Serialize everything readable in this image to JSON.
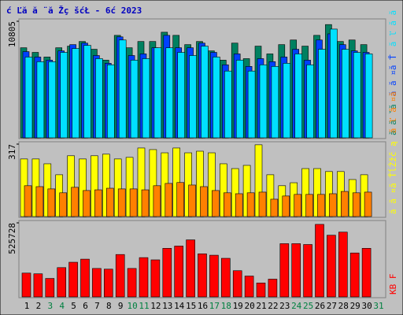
{
  "chart_data": {
    "type": "bar",
    "title": "ć Ľă   ă ¨ă Žç šćŁ   - 6ć    2023",
    "title_color": "#0000c0",
    "categories": [
      "1",
      "2",
      "3",
      "4",
      "5",
      "6",
      "7",
      "8",
      "9",
      "10",
      "11",
      "12",
      "13",
      "14",
      "15",
      "16",
      "17",
      "18",
      "19",
      "20",
      "21",
      "22",
      "23",
      "24",
      "25",
      "26",
      "27",
      "28",
      "29",
      "30",
      "31"
    ],
    "x_label_colors": [
      "#000000",
      "#000000",
      "#008040",
      "#008040",
      "#000000",
      "#000000",
      "#000000",
      "#000000",
      "#000000",
      "#008040",
      "#008040",
      "#000000",
      "#000000",
      "#000000",
      "#000000",
      "#000000",
      "#008040",
      "#008040",
      "#000000",
      "#000000",
      "#000000",
      "#000000",
      "#000000",
      "#008040",
      "#008040",
      "#000000",
      "#000000",
      "#000000",
      "#000000",
      "#000000",
      "#008040"
    ],
    "panels": [
      {
        "ylim": [
          0,
          10805
        ],
        "yticks": [
          10805
        ],
        "series": [
          {
            "name": "ă ă ˇă ",
            "color": "#008060",
            "values": [
              8350,
              7920,
              7490,
              8350,
              8500,
              8930,
              8210,
              7200,
              9500,
              8350,
              8930,
              8930,
              9790,
              9500,
              8640,
              8930,
              8060,
              7200,
              8780,
              7340,
              8500,
              7780,
              8640,
              9070,
              8500,
              9500,
              10500,
              8930,
              9070,
              8640,
              null
            ]
          },
          {
            "name": "ă ă ¤ă Ť",
            "color": "#0040ff",
            "values": [
              7990,
              7490,
              7200,
              8060,
              8640,
              8780,
              7630,
              6910,
              9360,
              7630,
              7780,
              8350,
              9500,
              8350,
              8350,
              8780,
              7920,
              6770,
              7780,
              6620,
              7340,
              7060,
              7490,
              8210,
              7200,
              9070,
              9640,
              8640,
              8060,
              7920,
              null
            ]
          },
          {
            "name": "ă ľ ă ă ",
            "color": "#00e0ff",
            "values": [
              7490,
              7060,
              7060,
              7920,
              8280,
              8570,
              7340,
              6770,
              9070,
              7200,
              7340,
              8350,
              8350,
              7920,
              7630,
              8500,
              7490,
              6190,
              7200,
              6190,
              6770,
              6620,
              6910,
              7780,
              6770,
              8210,
              10080,
              8210,
              7920,
              7780,
              null
            ]
          }
        ]
      },
      {
        "ylim": [
          0,
          317
        ],
        "yticks": [
          317
        ],
        "series": [
          {
            "name": "ă ă ¤ă ŤĺŻžč ą",
            "color": "#ffff00",
            "values": [
              252,
              252,
              231,
              183,
              266,
              252,
              266,
              273,
              252,
              259,
              300,
              293,
              279,
              300,
              279,
              286,
              279,
              231,
              210,
              224,
              314,
              183,
              135,
              148,
              210,
              210,
              197,
              197,
              162,
              183,
              null
            ]
          },
          {
            "name": "ă ľ ă ¤ă",
            "color": "#ff8000",
            "values": [
              135,
              131,
              121,
              104,
              128,
              114,
              117,
              124,
              121,
              121,
              117,
              135,
              145,
              149,
              138,
              131,
              114,
              104,
              100,
              104,
              107,
              76,
              90,
              97,
              97,
              97,
              100,
              110,
              104,
              107,
              null
            ]
          }
        ]
      },
      {
        "ylim": [
          0,
          525728
        ],
        "yticks": [
          525728
        ],
        "series": [
          {
            "name": "KB F",
            "color": "#ff0000",
            "values": [
              169000,
              164000,
              131000,
              208000,
              246000,
              268000,
              202000,
              197000,
              301000,
              202000,
              279000,
              263000,
              345000,
              361000,
              405000,
              306000,
              296000,
              274000,
              186000,
              148000,
              99000,
              126000,
              378000,
              378000,
              372000,
              515000,
              438000,
              460000,
              312000,
              345000,
              null
            ]
          }
        ]
      }
    ]
  }
}
